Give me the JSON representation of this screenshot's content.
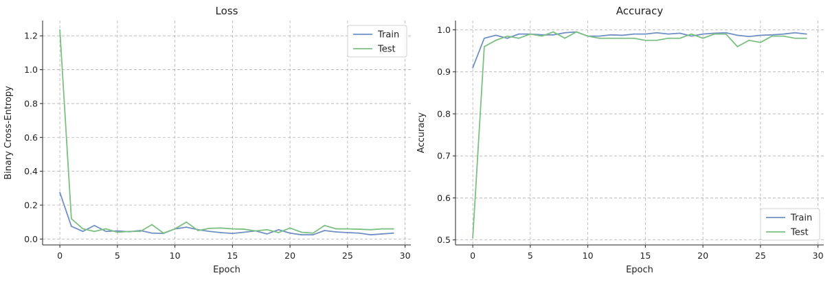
{
  "chart_data": [
    {
      "type": "line",
      "title": "Loss",
      "xlabel": "Epoch",
      "ylabel": "Binary Cross-Entropy",
      "xlim": [
        -1.5,
        30.5
      ],
      "ylim": [
        -0.035,
        1.29
      ],
      "xticks": [
        0,
        5,
        10,
        15,
        20,
        25,
        30
      ],
      "yticks": [
        0.0,
        0.2,
        0.4,
        0.6,
        0.8,
        1.0,
        1.2
      ],
      "ytick_labels": [
        "0.0",
        "0.2",
        "0.4",
        "0.6",
        "0.8",
        "1.0",
        "1.2"
      ],
      "grid": true,
      "legend": "top-right",
      "x": [
        0,
        1,
        2,
        3,
        4,
        5,
        6,
        7,
        8,
        9,
        10,
        11,
        12,
        13,
        14,
        15,
        16,
        17,
        18,
        19,
        20,
        21,
        22,
        23,
        24,
        25,
        26,
        27,
        28,
        29
      ],
      "series": [
        {
          "name": "Train",
          "color": "#6f8fc4",
          "values": [
            0.275,
            0.075,
            0.045,
            0.08,
            0.045,
            0.048,
            0.043,
            0.05,
            0.035,
            0.033,
            0.06,
            0.07,
            0.055,
            0.045,
            0.038,
            0.033,
            0.04,
            0.048,
            0.03,
            0.055,
            0.035,
            0.025,
            0.025,
            0.05,
            0.042,
            0.038,
            0.035,
            0.025,
            0.03,
            0.035
          ]
        },
        {
          "name": "Test",
          "color": "#7bbf82",
          "values": [
            1.235,
            0.12,
            0.06,
            0.045,
            0.06,
            0.04,
            0.045,
            0.045,
            0.085,
            0.035,
            0.06,
            0.1,
            0.05,
            0.063,
            0.065,
            0.06,
            0.058,
            0.048,
            0.055,
            0.038,
            0.065,
            0.04,
            0.035,
            0.08,
            0.06,
            0.06,
            0.058,
            0.055,
            0.06,
            0.06
          ]
        }
      ]
    },
    {
      "type": "line",
      "title": "Accuracy",
      "xlabel": "Epoch",
      "ylabel": "Accuracy",
      "xlim": [
        -1.5,
        30.5
      ],
      "ylim": [
        0.488,
        1.022
      ],
      "xticks": [
        0,
        5,
        10,
        15,
        20,
        25,
        30
      ],
      "yticks": [
        0.5,
        0.6,
        0.7,
        0.8,
        0.9,
        1.0
      ],
      "ytick_labels": [
        "0.5",
        "0.6",
        "0.7",
        "0.8",
        "0.9",
        "1.0"
      ],
      "grid": true,
      "legend": "bottom-right",
      "x": [
        0,
        1,
        2,
        3,
        4,
        5,
        6,
        7,
        8,
        9,
        10,
        11,
        12,
        13,
        14,
        15,
        16,
        17,
        18,
        19,
        20,
        21,
        22,
        23,
        24,
        25,
        26,
        27,
        28,
        29
      ],
      "series": [
        {
          "name": "Train",
          "color": "#6f8fc4",
          "values": [
            0.91,
            0.98,
            0.987,
            0.98,
            0.99,
            0.99,
            0.988,
            0.988,
            0.993,
            0.995,
            0.985,
            0.985,
            0.988,
            0.987,
            0.99,
            0.99,
            0.993,
            0.99,
            0.992,
            0.985,
            0.99,
            0.992,
            0.993,
            0.987,
            0.984,
            0.987,
            0.988,
            0.99,
            0.993,
            0.99
          ]
        },
        {
          "name": "Test",
          "color": "#7bbf82",
          "values": [
            0.505,
            0.96,
            0.975,
            0.985,
            0.98,
            0.99,
            0.985,
            0.995,
            0.98,
            0.995,
            0.985,
            0.98,
            0.98,
            0.98,
            0.98,
            0.975,
            0.975,
            0.98,
            0.98,
            0.99,
            0.98,
            0.99,
            0.99,
            0.96,
            0.975,
            0.97,
            0.985,
            0.985,
            0.98,
            0.98
          ]
        }
      ]
    }
  ]
}
